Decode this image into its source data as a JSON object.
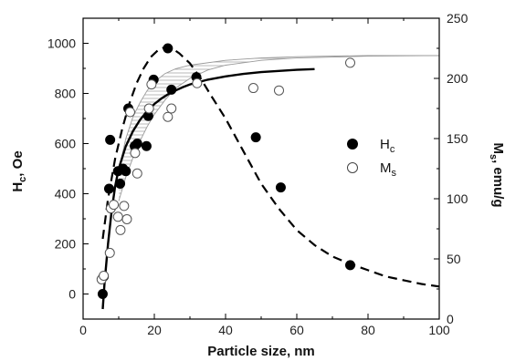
{
  "chart_data": {
    "type": "scatter",
    "title": "",
    "xlabel": "Particle size, nm",
    "ylabel_left": {
      "main": "H",
      "sub": "c",
      "tail": ", Oe"
    },
    "ylabel_right": {
      "main": "M",
      "sub": "s",
      "tail": ", emu/g"
    },
    "xlim": [
      0,
      100
    ],
    "ylim_left": [
      -100,
      1100
    ],
    "ylim_right": [
      0,
      250
    ],
    "x_ticks": [
      0,
      20,
      40,
      60,
      80,
      100
    ],
    "y_left_ticks": [
      0,
      200,
      400,
      600,
      800,
      1000
    ],
    "y_right_ticks": [
      0,
      50,
      100,
      150,
      200,
      250
    ],
    "x_tick_labels": [
      "0",
      "20",
      "40",
      "60",
      "80",
      "100"
    ],
    "y_left_tick_labels": [
      "0",
      "200",
      "400",
      "600",
      "800",
      "1000"
    ],
    "y_right_tick_labels": [
      "0",
      "50",
      "100",
      "150",
      "200",
      "250"
    ],
    "grid": false,
    "legend_position": "right-middle",
    "legend": [
      {
        "main": "H",
        "sub": "c",
        "marker": "filled-circle"
      },
      {
        "main": "M",
        "sub": "s",
        "marker": "open-circle"
      }
    ],
    "series": [
      {
        "axis": "left",
        "marker": "filled",
        "points": [
          [
            5.5,
            0
          ],
          [
            5.8,
            70
          ],
          [
            7.3,
            420
          ],
          [
            7.6,
            615
          ],
          [
            9.8,
            490
          ],
          [
            10.4,
            440
          ],
          [
            11.2,
            500
          ],
          [
            12.0,
            490
          ],
          [
            12.7,
            740
          ],
          [
            14.5,
            590
          ],
          [
            15.2,
            600
          ],
          [
            17.8,
            590
          ],
          [
            18.3,
            710
          ],
          [
            19.8,
            855
          ],
          [
            23.8,
            980
          ],
          [
            24.8,
            815
          ],
          [
            31.8,
            865
          ],
          [
            48.5,
            625
          ],
          [
            55.5,
            425
          ],
          [
            75.0,
            115
          ]
        ]
      },
      {
        "axis": "right",
        "marker": "open",
        "points": [
          [
            5.2,
            33
          ],
          [
            5.8,
            36
          ],
          [
            7.5,
            55
          ],
          [
            7.8,
            92
          ],
          [
            8.6,
            95
          ],
          [
            9.8,
            85
          ],
          [
            10.5,
            74
          ],
          [
            11.5,
            94
          ],
          [
            12.3,
            83
          ],
          [
            13.2,
            172
          ],
          [
            14.6,
            138
          ],
          [
            15.2,
            121
          ],
          [
            18.5,
            175
          ],
          [
            19.2,
            195
          ],
          [
            23.8,
            168
          ],
          [
            24.8,
            175
          ],
          [
            32.0,
            196
          ],
          [
            47.8,
            192
          ],
          [
            55.0,
            190
          ],
          [
            75.0,
            213
          ]
        ]
      }
    ],
    "fit_curves": [
      {
        "axis": "left",
        "style": "solid",
        "points": [
          [
            5.5,
            -60
          ],
          [
            6,
            40
          ],
          [
            7,
            200
          ],
          [
            8,
            330
          ],
          [
            9,
            430
          ],
          [
            10,
            500
          ],
          [
            12,
            590
          ],
          [
            14,
            650
          ],
          [
            16,
            695
          ],
          [
            18,
            730
          ],
          [
            20,
            758
          ],
          [
            22,
            780
          ],
          [
            24,
            798
          ],
          [
            26,
            812
          ],
          [
            28,
            825
          ],
          [
            30,
            836
          ],
          [
            35,
            855
          ],
          [
            40,
            868
          ],
          [
            45,
            878
          ],
          [
            50,
            885
          ],
          [
            55,
            890
          ],
          [
            60,
            894
          ],
          [
            65,
            897
          ]
        ]
      },
      {
        "axis": "left",
        "style": "dashed",
        "points": [
          [
            5.5,
            220
          ],
          [
            7,
            380
          ],
          [
            9,
            540
          ],
          [
            11,
            660
          ],
          [
            13,
            760
          ],
          [
            15,
            840
          ],
          [
            17,
            900
          ],
          [
            19,
            945
          ],
          [
            21,
            972
          ],
          [
            23,
            985
          ],
          [
            25,
            980
          ],
          [
            27,
            960
          ],
          [
            30,
            920
          ],
          [
            33,
            860
          ],
          [
            36,
            790
          ],
          [
            40,
            700
          ],
          [
            45,
            570
          ],
          [
            50,
            440
          ],
          [
            55,
            340
          ],
          [
            60,
            255
          ],
          [
            65,
            195
          ],
          [
            70,
            150
          ],
          [
            75,
            120
          ],
          [
            80,
            95
          ],
          [
            85,
            70
          ],
          [
            90,
            55
          ],
          [
            95,
            40
          ],
          [
            100,
            30
          ]
        ]
      },
      {
        "axis": "right",
        "style": "band-upper",
        "points": [
          [
            10,
            124
          ],
          [
            12,
            150
          ],
          [
            14,
            168
          ],
          [
            16,
            180
          ],
          [
            18,
            190
          ],
          [
            20,
            197
          ],
          [
            23,
            204
          ],
          [
            26,
            208
          ],
          [
            30,
            211
          ],
          [
            40,
            215
          ],
          [
            50,
            217
          ],
          [
            60,
            218
          ],
          [
            80,
            219
          ],
          [
            100,
            219
          ]
        ]
      },
      {
        "axis": "right",
        "style": "band-lower",
        "points": [
          [
            10,
            98
          ],
          [
            12,
            118
          ],
          [
            14,
            134
          ],
          [
            16,
            148
          ],
          [
            18,
            160
          ],
          [
            20,
            170
          ],
          [
            23,
            182
          ],
          [
            26,
            192
          ],
          [
            30,
            200
          ],
          [
            35,
            207
          ],
          [
            40,
            211
          ],
          [
            50,
            215
          ],
          [
            60,
            217
          ],
          [
            80,
            218.5
          ],
          [
            100,
            219
          ]
        ]
      }
    ]
  }
}
